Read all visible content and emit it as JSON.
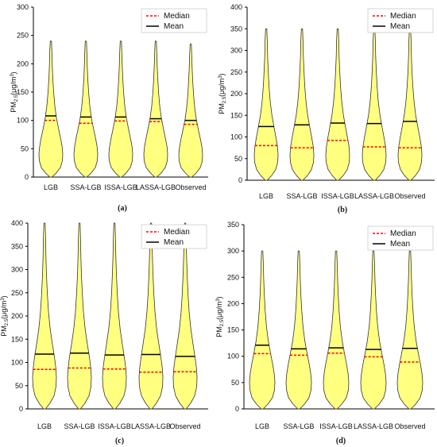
{
  "colors": {
    "violin_fill": "#ffff80",
    "violin_edge": "#333333",
    "mean": "#000000",
    "median": "#ff0000",
    "axis": "#000000"
  },
  "chart_data": [
    {
      "panel": "a",
      "type": "violin",
      "caption": "(a)",
      "ylabel": "PM",
      "ylabel_sub": "2.5",
      "ylabel_unit": "(μg/m",
      "ylabel_sup": "3",
      "ylabel_close": ")",
      "ylim": [
        0,
        300
      ],
      "yticks": [
        0,
        50,
        100,
        150,
        200,
        250,
        300
      ],
      "legend": {
        "median": "Median",
        "mean": "Mean",
        "position": "top-right"
      },
      "categories": [
        "LGB",
        "SSA-LGB",
        "ISSA-LGB",
        "LASSA-LGB",
        "Observed"
      ],
      "series": [
        {
          "name": "LGB",
          "max": 240,
          "median": 100,
          "mean": 108
        },
        {
          "name": "SSA-LGB",
          "max": 240,
          "median": 95,
          "mean": 106
        },
        {
          "name": "ISSA-LGB",
          "max": 240,
          "median": 99,
          "mean": 106
        },
        {
          "name": "LASSA-LGB",
          "max": 240,
          "median": 98,
          "mean": 103
        },
        {
          "name": "Observed",
          "max": 235,
          "median": 93,
          "mean": 100
        }
      ]
    },
    {
      "panel": "b",
      "type": "violin",
      "caption": "(b)",
      "ylabel": "PM",
      "ylabel_sub": "2.5",
      "ylabel_unit": "(μg/m",
      "ylabel_sup": "3",
      "ylabel_close": ")",
      "ylim": [
        0,
        400
      ],
      "yticks": [
        0,
        50,
        100,
        150,
        200,
        250,
        300,
        350,
        400
      ],
      "legend": {
        "median": "Median",
        "mean": "Mean",
        "position": "top-right"
      },
      "categories": [
        "LGB",
        "SSA-LGB",
        "ISSA-LGB",
        "LASSA-LGB",
        "Observed"
      ],
      "series": [
        {
          "name": "LGB",
          "max": 350,
          "median": 80,
          "mean": 124
        },
        {
          "name": "SSA-LGB",
          "max": 350,
          "median": 75,
          "mean": 128
        },
        {
          "name": "ISSA-LGB",
          "max": 350,
          "median": 92,
          "mean": 132
        },
        {
          "name": "LASSA-LGB",
          "max": 350,
          "median": 77,
          "mean": 131
        },
        {
          "name": "Observed",
          "max": 350,
          "median": 75,
          "mean": 136
        }
      ]
    },
    {
      "panel": "c",
      "type": "violin",
      "caption": "(c)",
      "ylabel": "PM",
      "ylabel_sub": "2.5",
      "ylabel_unit": "(μg/m",
      "ylabel_sup": "3",
      "ylabel_close": ")",
      "ylim": [
        0,
        400
      ],
      "yticks": [
        0,
        50,
        100,
        150,
        200,
        250,
        300,
        350,
        400
      ],
      "legend": {
        "median": "Median",
        "mean": "Mean",
        "position": "top-right"
      },
      "categories": [
        "LGB",
        "SSA-LGB",
        "ISSA-LGB",
        "LASSA-LGB",
        "Observed"
      ],
      "series": [
        {
          "name": "LGB",
          "max": 400,
          "median": 85,
          "mean": 118
        },
        {
          "name": "SSA-LGB",
          "max": 400,
          "median": 88,
          "mean": 120
        },
        {
          "name": "ISSA-LGB",
          "max": 400,
          "median": 86,
          "mean": 116
        },
        {
          "name": "LASSA-LGB",
          "max": 400,
          "median": 79,
          "mean": 117
        },
        {
          "name": "Observed",
          "max": 400,
          "median": 80,
          "mean": 113
        }
      ]
    },
    {
      "panel": "d",
      "type": "violin",
      "caption": "(d)",
      "ylabel": "PM",
      "ylabel_sub": "2.5",
      "ylabel_unit": "(μg/m",
      "ylabel_sup": "3",
      "ylabel_close": ")",
      "ylim": [
        0,
        350
      ],
      "yticks": [
        0,
        50,
        100,
        150,
        200,
        250,
        300,
        350
      ],
      "legend": {
        "median": "Median",
        "mean": "Mean",
        "position": "top-right"
      },
      "categories": [
        "LGB",
        "SSA-LGB",
        "ISSA-LGB",
        "LASSA-LGB",
        "Observed"
      ],
      "series": [
        {
          "name": "LGB",
          "max": 300,
          "median": 105,
          "mean": 121
        },
        {
          "name": "SSA-LGB",
          "max": 300,
          "median": 102,
          "mean": 114
        },
        {
          "name": "ISSA-LGB",
          "max": 300,
          "median": 106,
          "mean": 116
        },
        {
          "name": "LASSA-LGB",
          "max": 300,
          "median": 99,
          "mean": 113
        },
        {
          "name": "Observed",
          "max": 300,
          "median": 89,
          "mean": 115
        }
      ]
    }
  ]
}
